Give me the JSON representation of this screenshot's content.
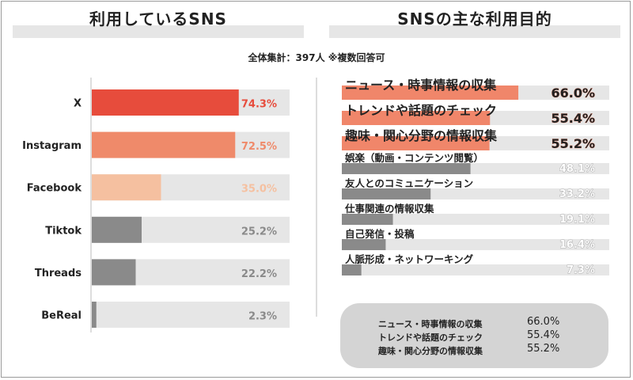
{
  "subtitle": "全体集計：397人 ※複数回答可",
  "chart_data": [
    {
      "type": "bar",
      "orientation": "horizontal",
      "title": "利用しているSNS",
      "categories": [
        "X",
        "Instagram",
        "Facebook",
        "Tiktok",
        "Threads",
        "BeReal"
      ],
      "values": [
        74.3,
        72.5,
        35.0,
        25.2,
        22.2,
        2.3
      ],
      "value_labels": [
        "74.3%",
        "72.5%",
        "35.0%",
        "25.2%",
        "22.2%",
        "2.3%"
      ],
      "xlim": [
        0,
        100
      ],
      "colors": [
        "#e74c3c",
        "#ef8a6a",
        "#f5c0a0",
        "#8a8a8a",
        "#8a8a8a",
        "#8a8a8a"
      ],
      "label_colors": [
        "#e74c3c",
        "#ef8a6a",
        "#f5c0a0",
        "#8a8a8a",
        "#8a8a8a",
        "#8a8a8a"
      ],
      "track_color": "#e6e6e6"
    },
    {
      "type": "bar",
      "orientation": "horizontal",
      "title": "SNSの主な利用目的",
      "categories": [
        "ニュース・時事情報の収集",
        "トレンドや話題のチェック",
        "趣味・関心分野の情報収集",
        "娯楽（動画・コンテンツ閲覧）",
        "友人とのコミュニケーション",
        "仕事関連の情報収集",
        "自己発信・投稿",
        "人脈形成・ネットワーキング"
      ],
      "values": [
        66.0,
        55.4,
        55.2,
        48.1,
        33.2,
        19.1,
        16.4,
        7.3
      ],
      "value_labels": [
        "66.0%",
        "55.4%",
        "55.2%",
        "48.1%",
        "33.2%",
        "19.1%",
        "16.4%",
        "7.3%"
      ],
      "xlim": [
        0,
        100
      ],
      "highlight_color": "#f0866a",
      "bar_color": "#8a8a8a",
      "track_color": "#e6e6e6"
    }
  ],
  "summary": [
    {
      "label": "ニュース・時事情報の収集",
      "value": "66.0%"
    },
    {
      "label": "トレンドや話題のチェック",
      "value": "55.4%"
    },
    {
      "label": "趣味・関心分野の情報収集",
      "value": "55.2%"
    }
  ]
}
